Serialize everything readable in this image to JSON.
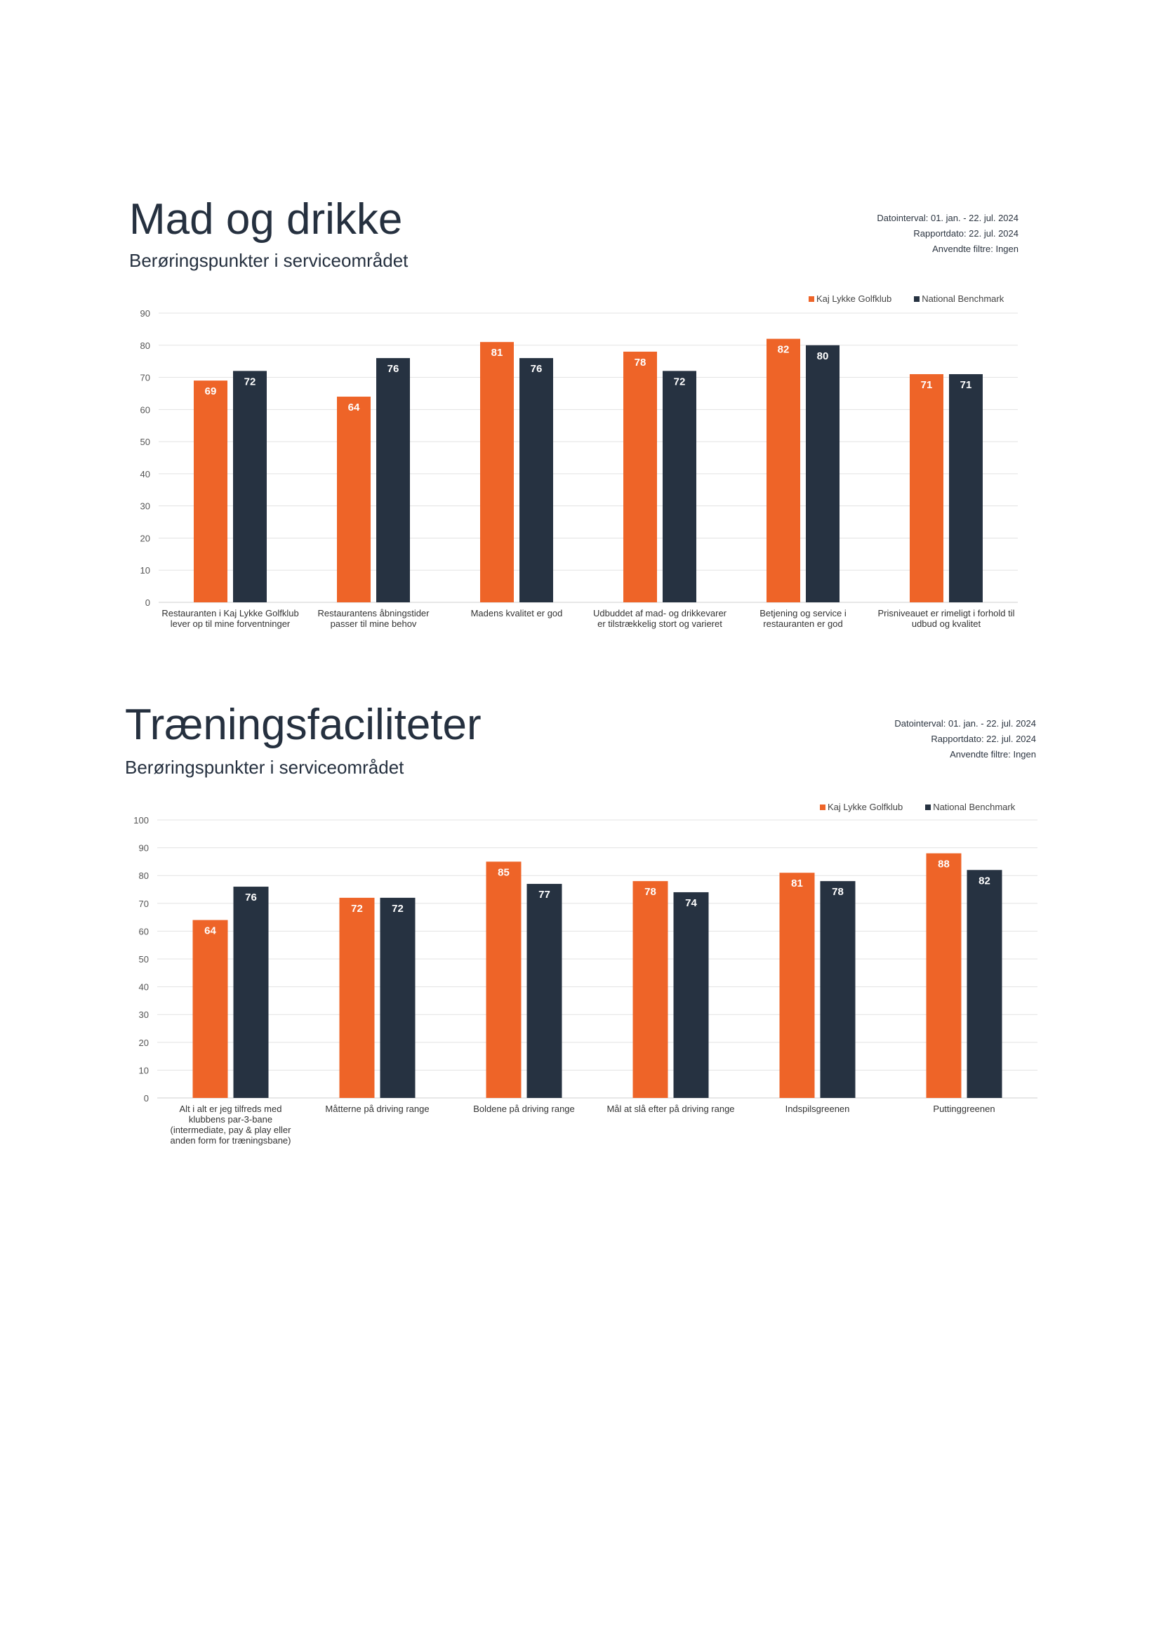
{
  "colors": {
    "club": "#ee6428",
    "benchmark": "#263241",
    "grid": "#e3e3e3",
    "axis_text": "#555555"
  },
  "chart_data": [
    {
      "type": "bar",
      "title": "Mad og drikke",
      "subtitle": "Berøringspunkter i serviceområdet",
      "meta": {
        "date_interval": "Datointerval: 01. jan. - 22. jul. 2024",
        "report_date": "Rapportdato: 22. jul. 2024",
        "filters": "Anvendte filtre: Ingen"
      },
      "categories": [
        [
          "Restauranten i Kaj Lykke Golfklub",
          "lever op til mine forventninger"
        ],
        [
          "Restaurantens åbningstider",
          "passer til mine behov"
        ],
        [
          "Madens kvalitet er god"
        ],
        [
          "Udbuddet af mad- og drikkevarer",
          "er tilstrækkelig stort og varieret"
        ],
        [
          "Betjening og service i",
          "restauranten er god"
        ],
        [
          "Prisniveauet er rimeligt i forhold til",
          "udbud og kvalitet"
        ]
      ],
      "series": [
        {
          "name": "Kaj Lykke Golfklub",
          "values": [
            69,
            64,
            81,
            78,
            82,
            71
          ]
        },
        {
          "name": "National Benchmark",
          "values": [
            72,
            76,
            76,
            72,
            80,
            71
          ]
        }
      ],
      "ylim": [
        0,
        90
      ],
      "yticks": [
        0,
        10,
        20,
        30,
        40,
        50,
        60,
        70,
        80,
        90
      ],
      "grid": true,
      "legend": "top-right"
    },
    {
      "type": "bar",
      "title": "Træningsfaciliteter",
      "subtitle": "Berøringspunkter i serviceområdet",
      "meta": {
        "date_interval": "Datointerval: 01. jan. - 22. jul. 2024",
        "report_date": "Rapportdato: 22. jul. 2024",
        "filters": "Anvendte filtre: Ingen"
      },
      "categories": [
        [
          "Alt i alt er jeg tilfreds med",
          "klubbens par-3-bane",
          "(intermediate, pay & play eller",
          "anden form for træningsbane)"
        ],
        [
          "Måtterne på driving range"
        ],
        [
          "Boldene på driving range"
        ],
        [
          "Mål at slå efter på driving range"
        ],
        [
          "Indspilsgreenen"
        ],
        [
          "Puttinggreenen"
        ]
      ],
      "series": [
        {
          "name": "Kaj Lykke Golfklub",
          "values": [
            64,
            72,
            85,
            78,
            81,
            88
          ]
        },
        {
          "name": "National Benchmark",
          "values": [
            76,
            72,
            77,
            74,
            78,
            82
          ]
        }
      ],
      "ylim": [
        0,
        100
      ],
      "yticks": [
        0,
        10,
        20,
        30,
        40,
        50,
        60,
        70,
        80,
        90,
        100
      ],
      "grid": true,
      "legend": "top-right"
    }
  ]
}
